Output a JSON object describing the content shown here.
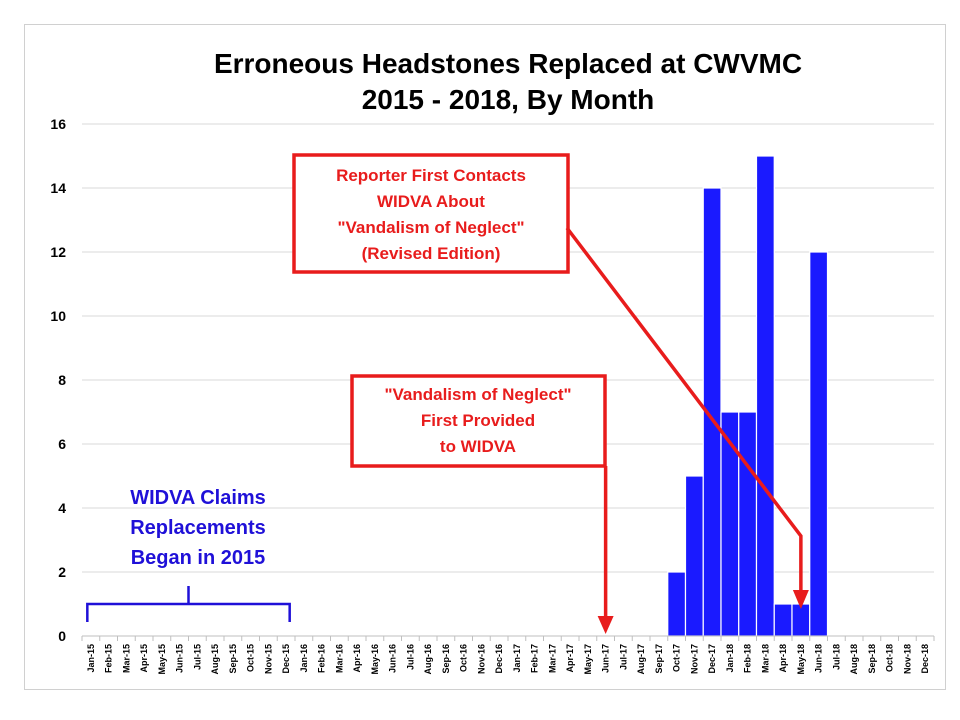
{
  "chart_data": {
    "type": "bar",
    "title": [
      "Erroneous Headstones Replaced at CWVMC",
      "2015 - 2018, By Month"
    ],
    "xlabel": "",
    "ylabel": "",
    "ylim": [
      0,
      16
    ],
    "yticks": [
      0,
      2,
      4,
      6,
      8,
      10,
      12,
      14,
      16
    ],
    "grid": true,
    "bar_color": "#1a1aff",
    "categories": [
      "Jan-15",
      "Feb-15",
      "Mar-15",
      "Apr-15",
      "May-15",
      "Jun-15",
      "Jul-15",
      "Aug-15",
      "Sep-15",
      "Oct-15",
      "Nov-15",
      "Dec-15",
      "Jan-16",
      "Feb-16",
      "Mar-16",
      "Apr-16",
      "May-16",
      "Jun-16",
      "Jul-16",
      "Aug-16",
      "Sep-16",
      "Oct-16",
      "Nov-16",
      "Dec-16",
      "Jan-17",
      "Feb-17",
      "Mar-17",
      "Apr-17",
      "May-17",
      "Jun-17",
      "Jul-17",
      "Aug-17",
      "Sep-17",
      "Oct-17",
      "Nov-17",
      "Dec-17",
      "Jan-18",
      "Feb-18",
      "Mar-18",
      "Apr-18",
      "May-18",
      "Jun-18",
      "Jul-18",
      "Aug-18",
      "Sep-18",
      "Oct-18",
      "Nov-18",
      "Dec-18"
    ],
    "values": [
      0,
      0,
      0,
      0,
      0,
      0,
      0,
      0,
      0,
      0,
      0,
      0,
      0,
      0,
      0,
      0,
      0,
      0,
      0,
      0,
      0,
      0,
      0,
      0,
      0,
      0,
      0,
      0,
      0,
      0,
      0,
      0,
      0,
      2,
      5,
      14,
      7,
      7,
      15,
      1,
      1,
      12,
      0,
      0,
      0,
      0,
      0,
      0
    ],
    "annotations": [
      {
        "lines": [
          "Reporter First Contacts",
          "WIDVA About",
          "\"Vandalism of Neglect\"",
          "(Revised Edition)"
        ],
        "color": "#e81c1c",
        "points_to": "May-18"
      },
      {
        "lines": [
          "\"Vandalism of Neglect\"",
          "First Provided",
          "to WIDVA"
        ],
        "color": "#e81c1c",
        "points_to": "Jun-17"
      },
      {
        "lines": [
          "WIDVA Claims",
          "Replacements",
          "Began in 2015"
        ],
        "color": "#1f10d8",
        "spans": [
          "Jan-15",
          "Dec-15"
        ]
      }
    ]
  }
}
